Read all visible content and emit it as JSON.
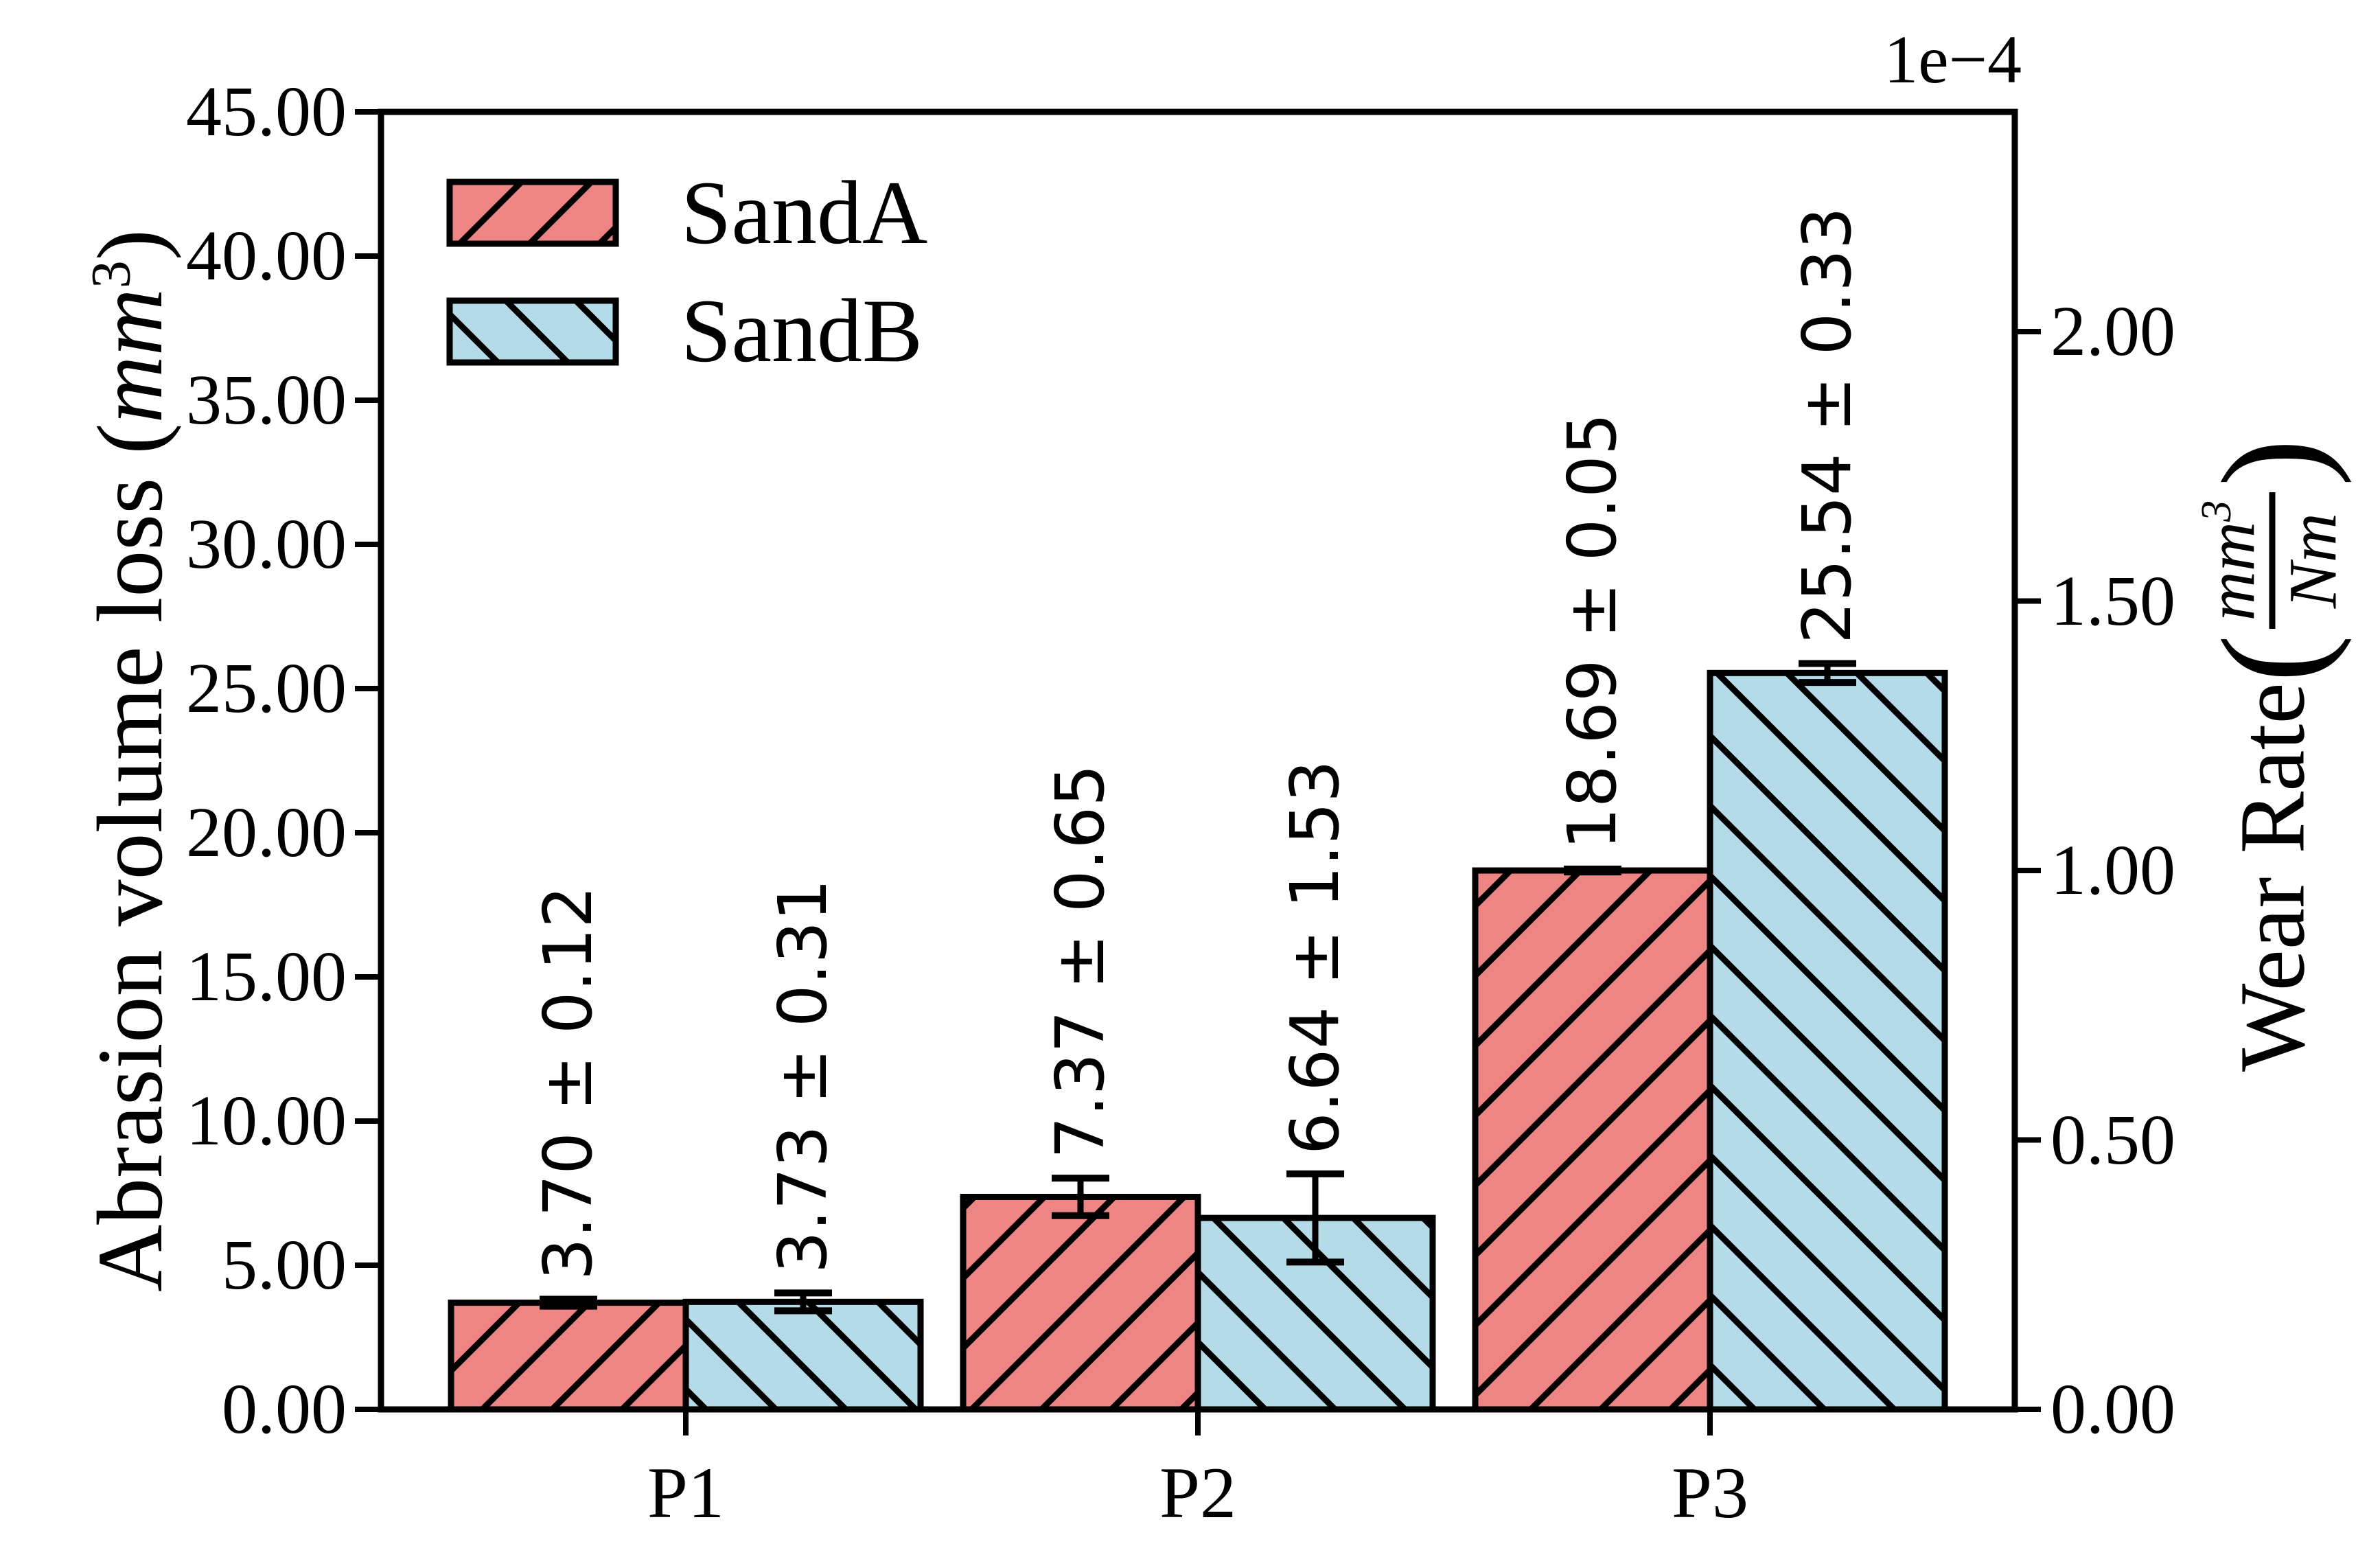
{
  "chart_data": {
    "type": "bar",
    "title": "",
    "categories": [
      "P1",
      "P2",
      "P3"
    ],
    "series": [
      {
        "name": "SandA",
        "color": "#ed8585",
        "hatch": "/",
        "values": [
          3.7,
          7.37,
          18.69
        ],
        "errors": [
          0.12,
          0.65,
          0.05
        ],
        "labels": [
          "3.70 ± 0.12",
          "7.37 ± 0.65",
          "18.69 ± 0.05"
        ]
      },
      {
        "name": "SandB",
        "color": "#b6dbe8",
        "hatch": "\\",
        "values": [
          3.73,
          6.64,
          25.54
        ],
        "errors": [
          0.31,
          1.53,
          0.33
        ],
        "labels": [
          "3.73 ± 0.31",
          "6.64 ± 1.53",
          "25.54 ± 0.33"
        ]
      }
    ],
    "left_axis": {
      "label": "Abrasion volume loss (mm³)",
      "min": 0,
      "max": 45,
      "tick_step": 5,
      "tick_labels": [
        "0.00",
        "5.00",
        "10.00",
        "15.00",
        "20.00",
        "25.00",
        "30.00",
        "35.00",
        "40.00",
        "45.00"
      ]
    },
    "right_axis": {
      "label": "Wear Rate (mm³/Nm)",
      "offset_text": "1e−4",
      "tick_labels": [
        "0.00",
        "0.50",
        "1.00",
        "1.50",
        "2.00"
      ],
      "tick_values": [
        0.0,
        0.5,
        1.0,
        1.5,
        2.0
      ],
      "left_units_per_right_unit": 18.69
    },
    "legend": {
      "position": "upper-left",
      "frame": false,
      "items": [
        {
          "label": "SandA"
        },
        {
          "label": "SandB"
        }
      ]
    },
    "grid": false,
    "edge_color": "#000000"
  },
  "labels": {
    "left_prefix": "Abrasion volume loss (",
    "mm": "mm",
    "sup3": "3",
    "close_paren": ")",
    "right_prefix": "Wear Rate ",
    "open_paren": "(",
    "Nm": "Nm"
  }
}
